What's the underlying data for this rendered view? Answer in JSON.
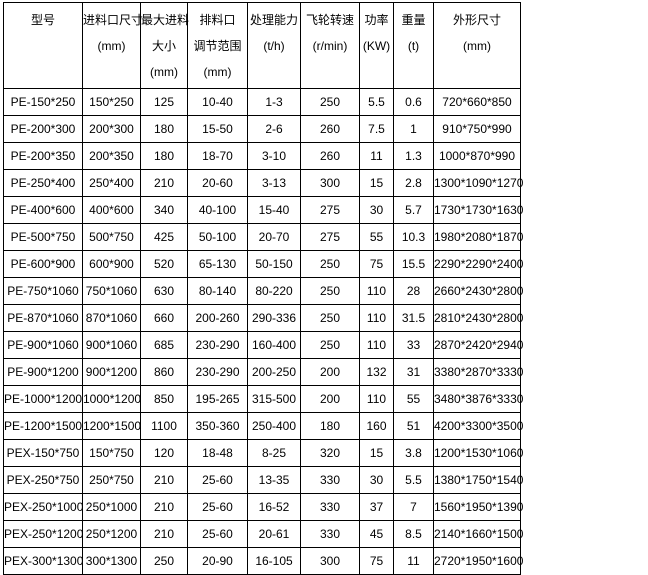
{
  "headers": [
    {
      "lines": [
        "型号"
      ]
    },
    {
      "lines": [
        "进料口尺寸",
        "(mm)"
      ]
    },
    {
      "lines": [
        "最大进料",
        "大小",
        "(mm)"
      ]
    },
    {
      "lines": [
        "排料口",
        "调节范围",
        "(mm)"
      ]
    },
    {
      "lines": [
        "处理能力",
        "(t/h)"
      ]
    },
    {
      "lines": [
        "飞轮转速",
        "(r/min)"
      ]
    },
    {
      "lines": [
        "功率",
        "(KW)"
      ]
    },
    {
      "lines": [
        "重量",
        "(t)"
      ]
    },
    {
      "lines": [
        "外形尺寸",
        "(mm)"
      ]
    }
  ],
  "rows": [
    [
      "PE-150*250",
      "150*250",
      "125",
      "10-40",
      "1-3",
      "250",
      "5.5",
      "0.6",
      "720*660*850"
    ],
    [
      "PE-200*300",
      "200*300",
      "180",
      "15-50",
      "2-6",
      "260",
      "7.5",
      "1",
      "910*750*990"
    ],
    [
      "PE-200*350",
      "200*350",
      "180",
      "18-70",
      "3-10",
      "260",
      "11",
      "1.3",
      "1000*870*990"
    ],
    [
      "PE-250*400",
      "250*400",
      "210",
      "20-60",
      "3-13",
      "300",
      "15",
      "2.8",
      "1300*1090*1270"
    ],
    [
      "PE-400*600",
      "400*600",
      "340",
      "40-100",
      "15-40",
      "275",
      "30",
      "5.7",
      "1730*1730*1630"
    ],
    [
      "PE-500*750",
      "500*750",
      "425",
      "50-100",
      "20-70",
      "275",
      "55",
      "10.3",
      "1980*2080*1870"
    ],
    [
      "PE-600*900",
      "600*900",
      "520",
      "65-130",
      "50-150",
      "250",
      "75",
      "15.5",
      "2290*2290*2400"
    ],
    [
      "PE-750*1060",
      "750*1060",
      "630",
      "80-140",
      "80-220",
      "250",
      "110",
      "28",
      "2660*2430*2800"
    ],
    [
      "PE-870*1060",
      "870*1060",
      "660",
      "200-260",
      "290-336",
      "250",
      "110",
      "31.5",
      "2810*2430*2800"
    ],
    [
      "PE-900*1060",
      "900*1060",
      "685",
      "230-290",
      "160-400",
      "250",
      "110",
      "33",
      "2870*2420*2940"
    ],
    [
      "PE-900*1200",
      "900*1200",
      "860",
      "230-290",
      "200-250",
      "200",
      "132",
      "31",
      "3380*2870*3330"
    ],
    [
      "PE-1000*1200",
      "1000*1200",
      "850",
      "195-265",
      "315-500",
      "200",
      "110",
      "55",
      "3480*3876*3330"
    ],
    [
      "PE-1200*1500",
      "1200*1500",
      "1100",
      "350-360",
      "250-400",
      "180",
      "160",
      "51",
      "4200*3300*3500"
    ],
    [
      "PEX-150*750",
      "150*750",
      "120",
      "18-48",
      "8-25",
      "320",
      "15",
      "3.8",
      "1200*1530*1060"
    ],
    [
      "PEX-250*750",
      "250*750",
      "210",
      "25-60",
      "13-35",
      "330",
      "30",
      "5.5",
      "1380*1750*1540"
    ],
    [
      "PEX-250*1000",
      "250*1000",
      "210",
      "25-60",
      "16-52",
      "330",
      "37",
      "7",
      "1560*1950*1390"
    ],
    [
      "PEX-250*1200",
      "250*1200",
      "210",
      "25-60",
      "20-61",
      "330",
      "45",
      "8.5",
      "2140*1660*1500"
    ],
    [
      "PEX-300*1300",
      "300*1300",
      "250",
      "20-90",
      "16-105",
      "300",
      "75",
      "11",
      "2720*1950*1600"
    ]
  ]
}
